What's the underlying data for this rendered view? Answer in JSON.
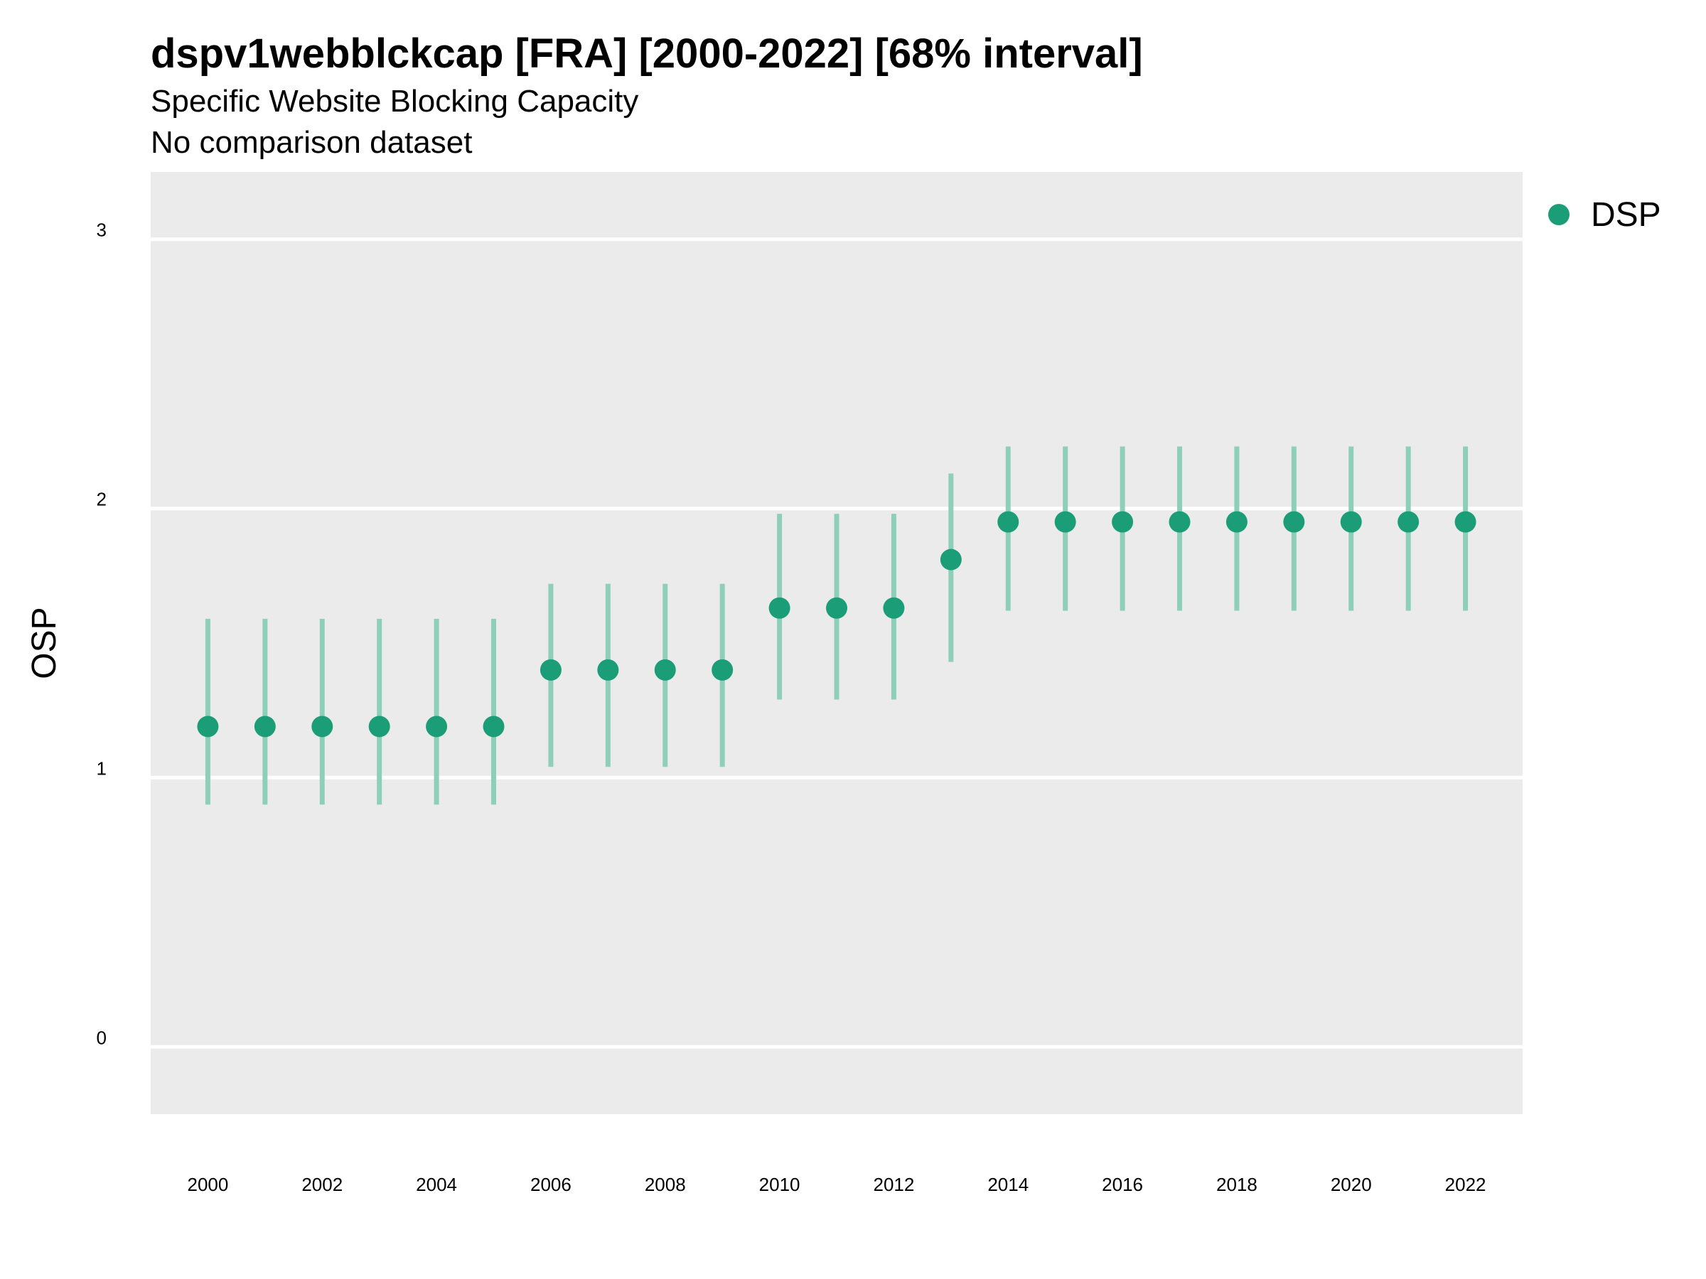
{
  "chart_data": {
    "type": "scatter",
    "title": "dspv1webblckcap [FRA] [2000-2022] [68% interval]",
    "subtitle": "Specific Website Blocking Capacity",
    "subtitle2": "No comparison dataset",
    "xlabel": "",
    "ylabel": "OSP",
    "xlim": [
      1999.0,
      2023.0
    ],
    "ylim": [
      -0.25,
      3.25
    ],
    "x_ticks": [
      2000,
      2002,
      2004,
      2006,
      2008,
      2010,
      2012,
      2014,
      2016,
      2018,
      2020,
      2022
    ],
    "y_ticks": [
      0,
      1,
      2,
      3
    ],
    "grid": true,
    "legend_position": "right",
    "colors": {
      "point": "#1b9e77",
      "interval": "#8ecfba",
      "panel": "#ebebeb",
      "grid": "#ffffff"
    },
    "series": [
      {
        "name": "DSP",
        "x": [
          2000,
          2001,
          2002,
          2003,
          2004,
          2005,
          2006,
          2007,
          2008,
          2009,
          2010,
          2011,
          2012,
          2013,
          2014,
          2015,
          2016,
          2017,
          2018,
          2019,
          2020,
          2021,
          2022
        ],
        "y": [
          1.19,
          1.19,
          1.19,
          1.19,
          1.19,
          1.19,
          1.4,
          1.4,
          1.4,
          1.4,
          1.63,
          1.63,
          1.63,
          1.81,
          1.95,
          1.95,
          1.95,
          1.95,
          1.95,
          1.95,
          1.95,
          1.95,
          1.95
        ],
        "lower": [
          0.9,
          0.9,
          0.9,
          0.9,
          0.9,
          0.9,
          1.04,
          1.04,
          1.04,
          1.04,
          1.29,
          1.29,
          1.29,
          1.43,
          1.62,
          1.62,
          1.62,
          1.62,
          1.62,
          1.62,
          1.62,
          1.62,
          1.62
        ],
        "upper": [
          1.59,
          1.59,
          1.59,
          1.59,
          1.59,
          1.59,
          1.72,
          1.72,
          1.72,
          1.72,
          1.98,
          1.98,
          1.98,
          2.13,
          2.23,
          2.23,
          2.23,
          2.23,
          2.23,
          2.23,
          2.23,
          2.23,
          2.23
        ]
      }
    ]
  }
}
